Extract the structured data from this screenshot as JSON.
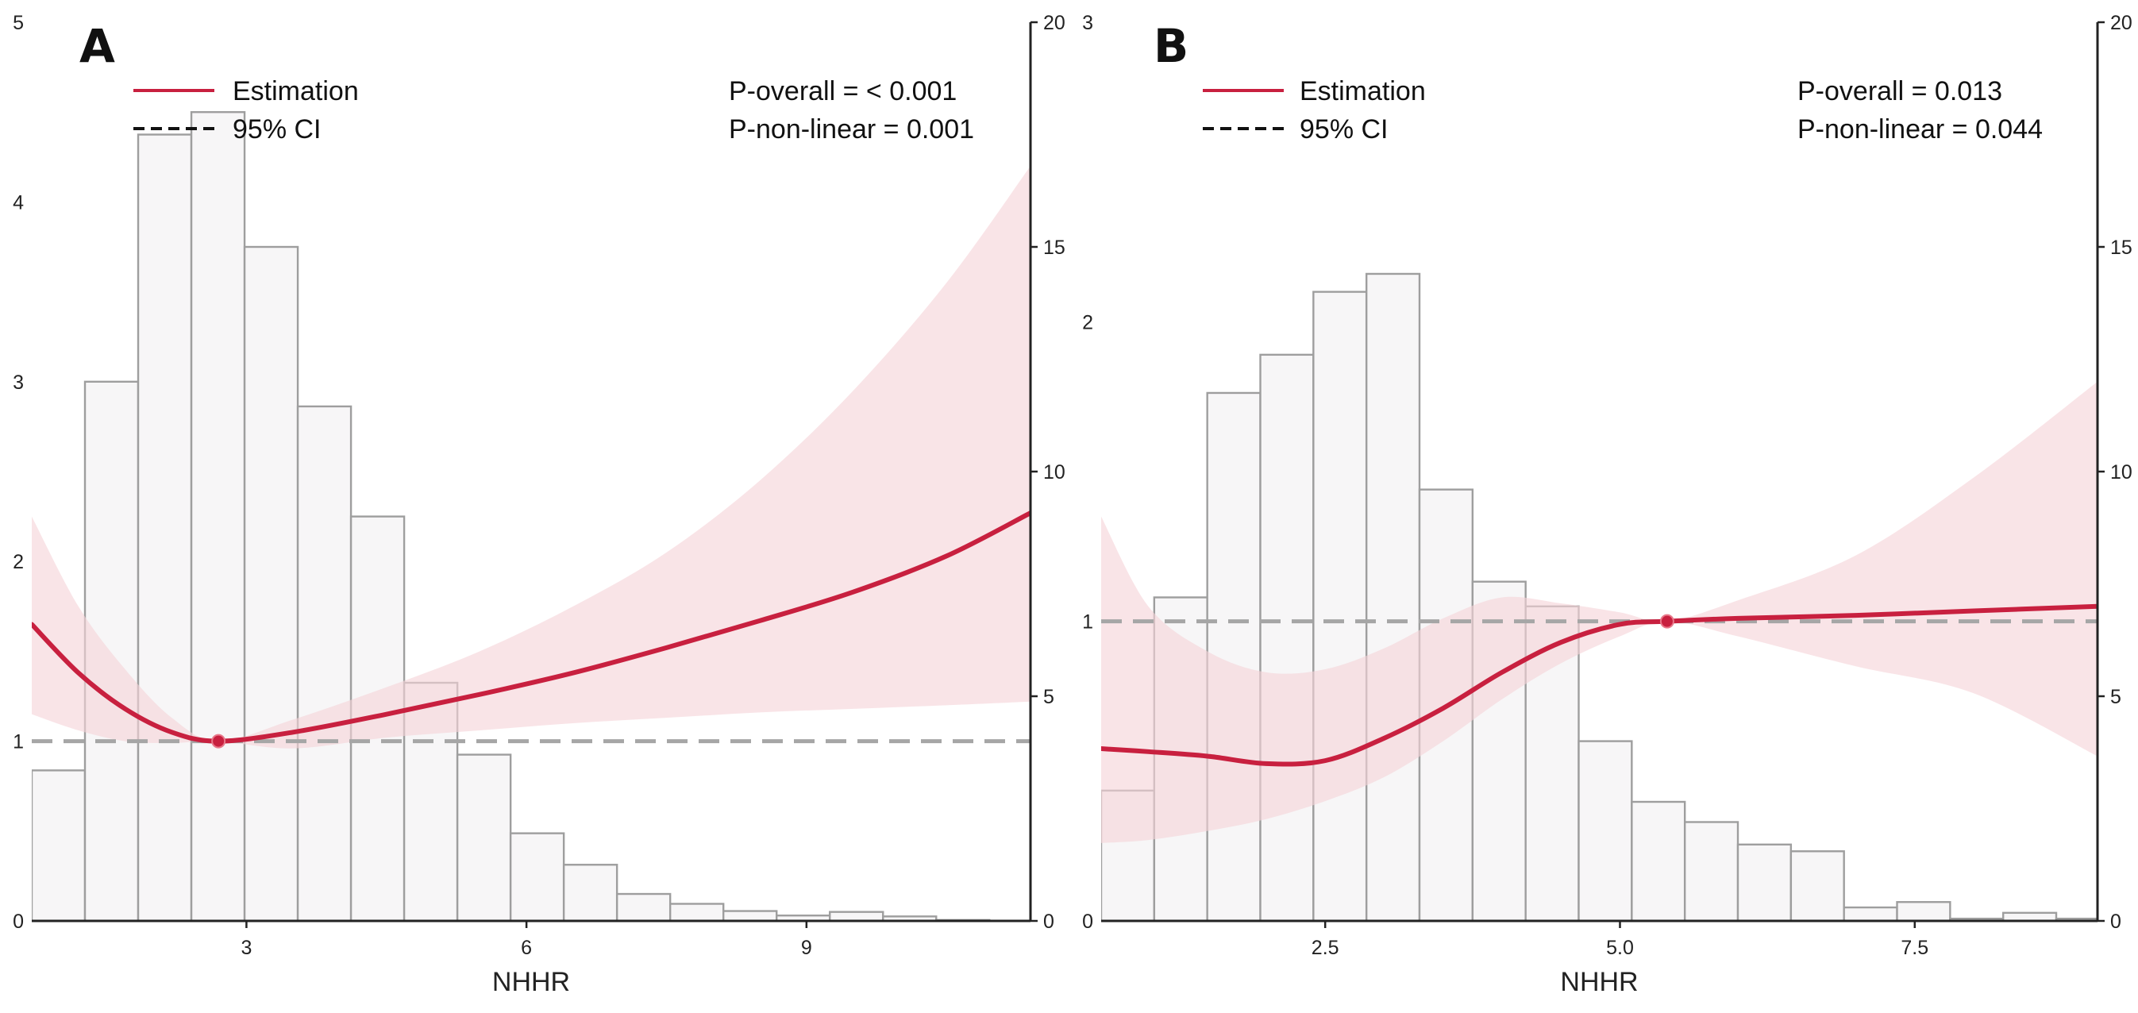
{
  "colors": {
    "curve": "#c8203f",
    "ci_fill": "#f6d3d8",
    "bar_fill": "#f7f6f7",
    "bar_stroke": "#9e9e9e",
    "ref_line": "#a6a6a6",
    "axis": "#222222"
  },
  "chart_data": [
    {
      "type": "line",
      "panel": "A",
      "xlabel": "NHHR",
      "ylabel": "",
      "xlim": [
        0.7,
        11.4
      ],
      "ylim": [
        0,
        5
      ],
      "y2lim": [
        0,
        20
      ],
      "xticks": [
        3,
        6,
        9
      ],
      "xtick_labels": [
        "3",
        "6",
        "9"
      ],
      "yticks": [
        0,
        1,
        2,
        3,
        4,
        5
      ],
      "ytick_labels": [
        "0",
        "1",
        "2",
        "3",
        "4",
        "5"
      ],
      "y2ticks": [
        0,
        5,
        10,
        15,
        20
      ],
      "y2tick_labels": [
        "0",
        "5",
        "10",
        "15",
        "20"
      ],
      "legend": {
        "estimation": "Estimation",
        "ci": "95% CI"
      },
      "stats": {
        "overall": "P-overall = < 0.001",
        "nonlinear": "P-non-linear = 0.001"
      },
      "reference_value": 1,
      "knot": {
        "x": 2.7,
        "y": 1.0
      },
      "histogram": {
        "bin_edges": [
          0.7,
          1.27,
          1.84,
          2.41,
          2.98,
          3.55,
          4.12,
          4.69,
          5.26,
          5.83,
          6.4,
          6.97,
          7.54,
          8.11,
          8.68,
          9.25,
          9.82,
          10.39,
          10.96
        ],
        "values": [
          3.35,
          12.0,
          17.5,
          18.0,
          15.0,
          11.45,
          9.0,
          5.3,
          3.7,
          1.95,
          1.25,
          0.6,
          0.38,
          0.22,
          0.12,
          0.2,
          0.1,
          0.02
        ]
      },
      "estimate": {
        "x": [
          0.7,
          1.2,
          1.7,
          2.2,
          2.7,
          3.5,
          4.5,
          5.5,
          6.5,
          7.5,
          8.5,
          9.5,
          10.5,
          11.4
        ],
        "y": [
          1.65,
          1.38,
          1.18,
          1.05,
          1.0,
          1.05,
          1.15,
          1.26,
          1.38,
          1.52,
          1.67,
          1.83,
          2.03,
          2.27
        ],
        "lower": [
          1.15,
          1.06,
          1.0,
          0.99,
          1.0,
          0.96,
          1.02,
          1.06,
          1.1,
          1.13,
          1.16,
          1.18,
          1.2,
          1.22
        ],
        "upper": [
          2.25,
          1.75,
          1.4,
          1.13,
          1.0,
          1.12,
          1.3,
          1.5,
          1.75,
          2.05,
          2.45,
          2.95,
          3.55,
          4.2
        ]
      }
    },
    {
      "type": "line",
      "panel": "B",
      "xlabel": "NHHR",
      "ylabel": "",
      "xlim": [
        0.6,
        9.05
      ],
      "ylim": [
        0,
        3
      ],
      "y2lim": [
        0,
        20
      ],
      "xticks": [
        2.5,
        5.0,
        7.5
      ],
      "xtick_labels": [
        "2.5",
        "5.0",
        "7.5"
      ],
      "yticks": [
        0,
        1,
        2,
        3
      ],
      "ytick_labels": [
        "0",
        "1",
        "2",
        "3"
      ],
      "y2ticks": [
        0,
        5,
        10,
        15,
        20
      ],
      "y2tick_labels": [
        "0",
        "5",
        "10",
        "15",
        "20"
      ],
      "legend": {
        "estimation": "Estimation",
        "ci": "95% CI"
      },
      "stats": {
        "overall": "P-overall = 0.013",
        "nonlinear": "P-non-linear = 0.044"
      },
      "reference_value": 1,
      "knot": {
        "x": 5.4,
        "y": 1.0
      },
      "histogram": {
        "bin_edges": [
          0.6,
          1.05,
          1.5,
          1.95,
          2.4,
          2.85,
          3.3,
          3.75,
          4.2,
          4.65,
          5.1,
          5.55,
          6.0,
          6.45,
          6.9,
          7.35,
          7.8,
          8.25,
          8.7,
          9.05
        ],
        "values": [
          2.9,
          7.2,
          11.75,
          12.6,
          14.0,
          14.4,
          9.6,
          7.55,
          7.0,
          4.0,
          2.65,
          2.2,
          1.7,
          1.55,
          0.3,
          0.42,
          0.05,
          0.18,
          0.05
        ]
      },
      "estimate": {
        "x": [
          0.6,
          1.0,
          1.5,
          2.0,
          2.5,
          3.0,
          3.5,
          4.0,
          4.5,
          5.0,
          5.4,
          6.0,
          7.0,
          8.0,
          9.05
        ],
        "y": [
          0.575,
          0.565,
          0.55,
          0.525,
          0.535,
          0.61,
          0.71,
          0.83,
          0.93,
          0.99,
          1.0,
          1.01,
          1.02,
          1.035,
          1.05
        ],
        "lower": [
          0.26,
          0.27,
          0.3,
          0.34,
          0.4,
          0.48,
          0.6,
          0.74,
          0.86,
          0.95,
          1.0,
          0.95,
          0.85,
          0.76,
          0.55
        ],
        "upper": [
          1.35,
          1.05,
          0.9,
          0.83,
          0.84,
          0.91,
          1.01,
          1.08,
          1.06,
          1.03,
          1.0,
          1.07,
          1.22,
          1.48,
          1.8
        ]
      }
    }
  ]
}
